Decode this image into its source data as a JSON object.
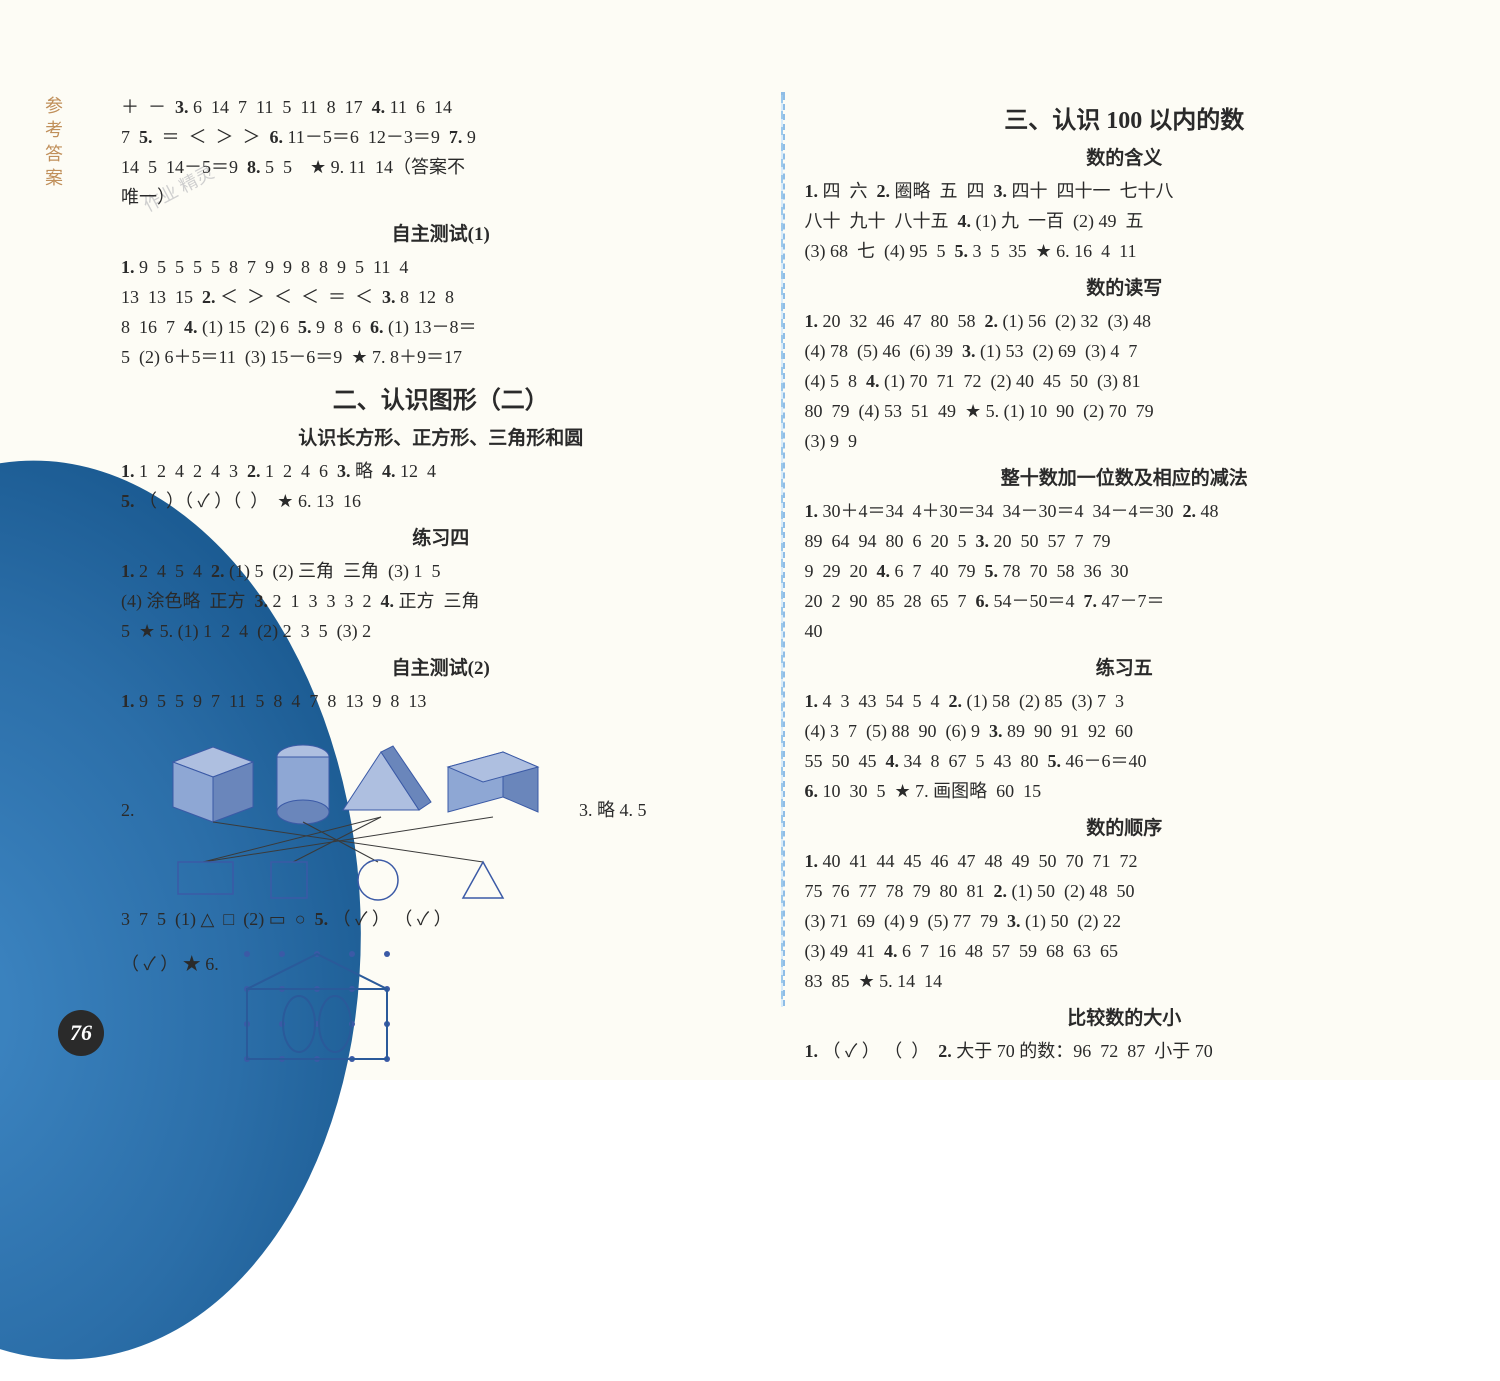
{
  "page": {
    "side_label": "参考答案",
    "page_number": "76",
    "watermark": "作业 精灵"
  },
  "left": {
    "top_lines": [
      "＋  －  3. 6  14  7  11  5  11  8  17  4. 11  6  14",
      "7  5.  ＝  ＜  ＞  ＞  6. 11－5＝6  12－3＝9  7. 9",
      "14  5  14－5＝9  8. 5  5    ★ 9. 11  14（答案不",
      "唯一）"
    ],
    "test1_title": "自主测试(1)",
    "test1_lines": [
      "1. 9  5  5  5  5  8  7  9  9  8  8  9  5  11  4",
      "13  13  15  2. ＜  ＞  ＜  ＜  ＝  ＜  3. 8  12  8",
      "8  16  7  4. (1) 15  (2) 6  5. 9  8  6  6. (1) 13－8＝",
      "5  (2) 6＋5＝11  (3) 15－6＝9  ★ 7. 8＋9＝17"
    ],
    "section2_title": "二、认识图形（二）",
    "sub_shapes_title": "认识长方形、正方形、三角形和圆",
    "sub_shapes_lines": [
      "1. 1  2  4  2  4  3  2. 1  2  4  6  3. 略  4. 12  4",
      "5. （  ）（ ✓ ）（  ）  ★ 6. 13  16"
    ],
    "prac4_title": "练习四",
    "prac4_lines": [
      "1. 2  4  5  4  2. (1) 5  (2) 三角  三角  (3) 1  5",
      "(4) 涂色略  正方  3. 2  1  3  3  3  2  4. 正方  三角",
      "5  ★ 5. (1) 1  2  4  (2) 2  3  5  (3) 2"
    ],
    "test2_title": "自主测试(2)",
    "test2_line1": "1. 9  5  5  9  7  11  5  8  4  7  8  13  9  8  13",
    "test2_side": [
      "2.",
      "3. 略  4. 5"
    ],
    "after_diag": "3  7  5  (1) △  □  (2) ▭  ○  5. （ ✓ ） （ ✓ ）",
    "star6": "（ ✓ ）  ★ 6.",
    "diagram": {
      "shape_stroke": "#3b5aa6",
      "shape_fill": "#aebfe0",
      "line_color": "#3a3a3a",
      "bg": "#f3f4f0"
    }
  },
  "right": {
    "section3_title": "三、认识 100 以内的数",
    "sub1_title": "数的含义",
    "sub1_lines": [
      "1. 四  六  2. 圈略  五  四  3. 四十  四十一  七十八",
      "八十  九十  八十五  4. (1) 九  一百  (2) 49  五",
      "(3) 68  七  (4) 95  5  5. 3  5  35  ★ 6. 16  4  11"
    ],
    "sub2_title": "数的读写",
    "sub2_lines": [
      "1. 20  32  46  47  80  58  2. (1) 56  (2) 32  (3) 48",
      "(4) 78  (5) 46  (6) 39  3. (1) 53  (2) 69  (3) 4  7",
      "(4) 5  8  4. (1) 70  71  72  (2) 40  45  50  (3) 81",
      "80  79  (4) 53  51  49  ★ 5. (1) 10  90  (2) 70  79",
      "(3) 9  9"
    ],
    "sub3_title": "整十数加一位数及相应的减法",
    "sub3_lines": [
      "1. 30＋4＝34  4＋30＝34  34－30＝4  34－4＝30  2. 48",
      "89  64  94  80  6  20  5  3. 20  50  57  7  79",
      "9  29  20  4. 6  7  40  79  5. 78  70  58  36  30",
      "20  2  90  85  28  65  7  6. 54－50＝4  7. 47－7＝",
      "40"
    ],
    "sub4_title": "练习五",
    "sub4_lines": [
      "1. 4  3  43  54  5  4  2. (1) 58  (2) 85  (3) 7  3",
      "(4) 3  7  (5) 88  90  (6) 9  3. 89  90  91  92  60",
      "55  50  45  4. 34  8  67  5  43  80  5. 46－6＝40",
      "6. 10  30  5  ★ 7. 画图略  60  15"
    ],
    "sub5_title": "数的顺序",
    "sub5_lines": [
      "1. 40  41  44  45  46  47  48  49  50  70  71  72",
      "75  76  77  78  79  80  81  2. (1) 50  (2) 48  50",
      "(3) 71  69  (4) 9  (5) 77  79  3. (1) 50  (2) 22",
      "(3) 49  41  4. 6  7  16  48  57  59  68  63  65",
      "83  85  ★ 5. 14  14"
    ],
    "sub6_title": "比较数的大小",
    "sub6_lines": [
      "1. （ ✓ ） （  ）  2. 大于 70 的数：96  72  87  小于 70"
    ]
  }
}
